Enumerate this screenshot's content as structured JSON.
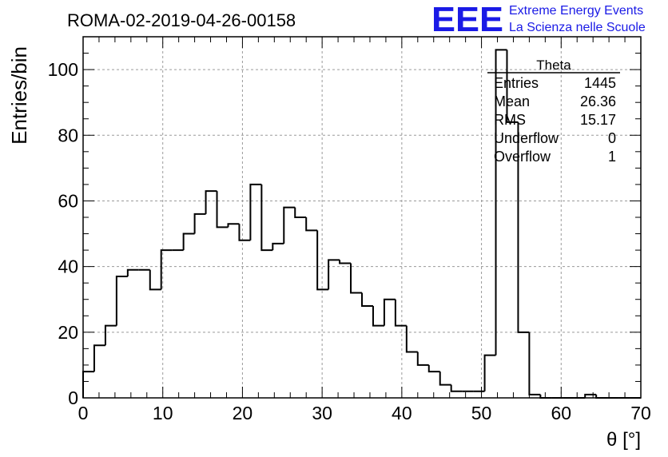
{
  "header": {
    "run_title": "ROMA-02-2019-04-26-00158",
    "logo_text": "EEE",
    "brand_line1": "Extreme Energy Events",
    "brand_line2": "La Scienza nelle Scuole"
  },
  "stats": {
    "name": "Theta",
    "rows": [
      {
        "label": "Entries",
        "value": "1445"
      },
      {
        "label": "Mean",
        "value": "26.36"
      },
      {
        "label": "RMS",
        "value": "15.17"
      },
      {
        "label": "Underflow",
        "value": "0"
      },
      {
        "label": "Overflow",
        "value": "1"
      }
    ]
  },
  "colors": {
    "logo": "#1a1ae6",
    "brand_text": "#1a1ae6",
    "line": "#000000",
    "grid": "#9a9a9a"
  },
  "chart_data": {
    "type": "bar",
    "style": "step-histogram",
    "xlabel": "θ [°]",
    "ylabel": "Entries/bin",
    "xlim": [
      0,
      70
    ],
    "ylim": [
      0,
      110
    ],
    "xticks": [
      0,
      10,
      20,
      30,
      40,
      50,
      60,
      70
    ],
    "yticks": [
      0,
      20,
      40,
      60,
      80,
      100
    ],
    "grid": true,
    "bin_width": 1.4,
    "bin_edges_start": 0,
    "values": [
      8,
      16,
      22,
      37,
      39,
      39,
      33,
      45,
      45,
      50,
      56,
      63,
      52,
      53,
      48,
      65,
      45,
      47,
      58,
      55,
      51,
      33,
      42,
      41,
      32,
      28,
      22,
      30,
      22,
      14,
      10,
      8,
      4,
      2,
      2,
      2,
      13,
      106,
      84,
      20,
      1,
      0,
      0,
      0,
      0,
      1,
      0,
      0,
      0,
      0
    ]
  }
}
